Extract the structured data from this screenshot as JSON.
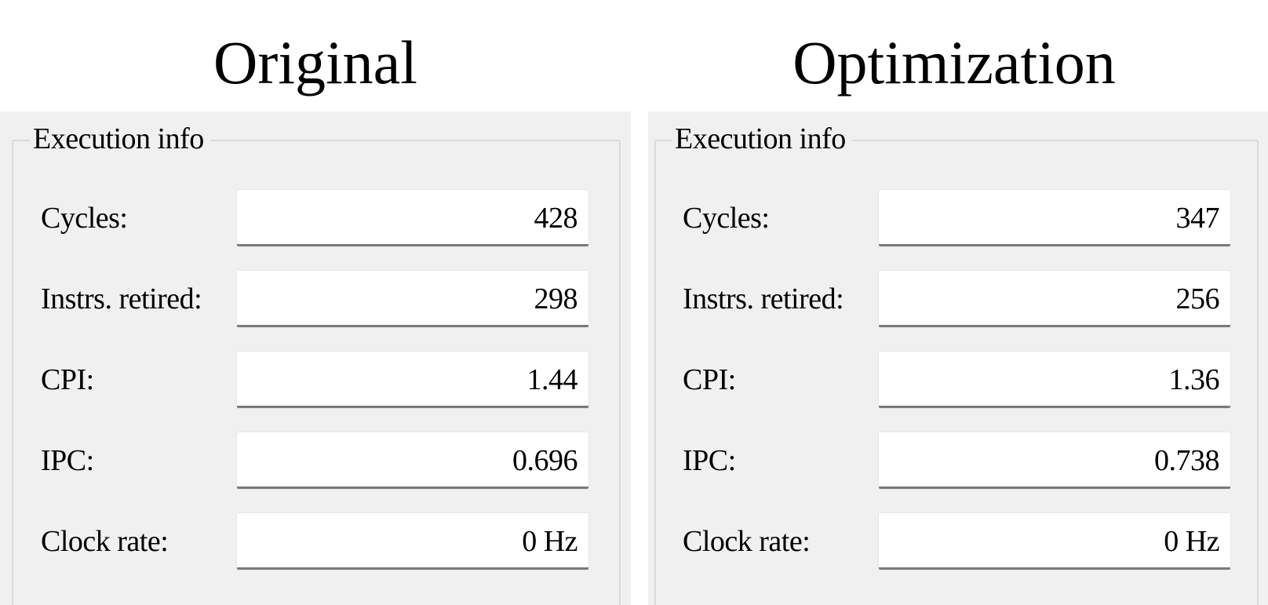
{
  "panels": [
    {
      "heading": "Original",
      "group_title": "Execution info",
      "rows": [
        {
          "label": "Cycles:",
          "value": "428"
        },
        {
          "label": "Instrs. retired:",
          "value": "298"
        },
        {
          "label": "CPI:",
          "value": "1.44"
        },
        {
          "label": "IPC:",
          "value": "0.696"
        },
        {
          "label": "Clock rate:",
          "value": "0 Hz"
        }
      ]
    },
    {
      "heading": "Optimization",
      "group_title": "Execution info",
      "rows": [
        {
          "label": "Cycles:",
          "value": "347"
        },
        {
          "label": "Instrs. retired:",
          "value": "256"
        },
        {
          "label": "CPI:",
          "value": "1.36"
        },
        {
          "label": "IPC:",
          "value": "0.738"
        },
        {
          "label": "Clock rate:",
          "value": "0 Hz"
        }
      ]
    }
  ],
  "colors": {
    "panel_background": "#f0f0f0",
    "field_background": "#ffffff",
    "field_underline": "#7a7a7a",
    "group_border": "#d9d9d9"
  }
}
